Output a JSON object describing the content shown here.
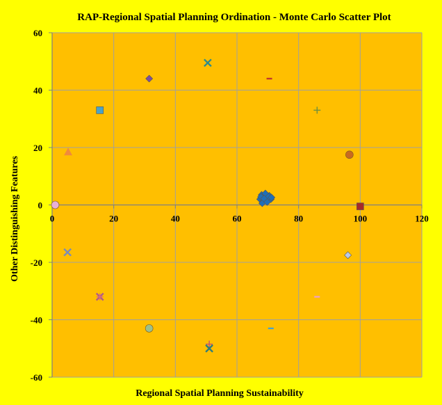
{
  "chart_data": {
    "type": "scatter",
    "title": "RAP-Regional Spatial Planning Ordination  - Monte Carlo Scatter Plot",
    "xlabel": "Regional Spatial Planning Sustainability",
    "ylabel": "Other Distinguishing Features",
    "xlim": [
      0,
      120
    ],
    "ylim": [
      -60,
      60
    ],
    "xticks": [
      0,
      20,
      40,
      60,
      80,
      100,
      120
    ],
    "yticks": [
      -60,
      -40,
      -20,
      0,
      20,
      40,
      60
    ],
    "grid": true,
    "legend": "none",
    "colors": {
      "background": "#ffff00",
      "plot_area": "#ffbf00",
      "gridline": "#a0a0a0",
      "cluster": "#1f6fb8"
    },
    "cluster": {
      "marker": "diamond",
      "color": "#1f6fb8",
      "points": [
        [
          67.5,
          2.0
        ],
        [
          68.0,
          3.5
        ],
        [
          68.5,
          1.2
        ],
        [
          69.0,
          3.0
        ],
        [
          69.5,
          2.4
        ],
        [
          70.0,
          1.8
        ],
        [
          70.5,
          3.2
        ],
        [
          71.0,
          2.0
        ],
        [
          68.2,
          0.6
        ],
        [
          69.2,
          4.0
        ],
        [
          70.2,
          2.8
        ],
        [
          67.8,
          2.8
        ],
        [
          71.2,
          2.6
        ],
        [
          68.8,
          2.2
        ],
        [
          69.8,
          1.0
        ]
      ]
    },
    "points": [
      {
        "marker": "diamond",
        "color": "#7b4fa0",
        "x": 31.5,
        "y": 44
      },
      {
        "marker": "x",
        "color": "#2e8b8b",
        "x": 50.5,
        "y": 49.5
      },
      {
        "marker": "dash",
        "color": "#c0392b",
        "x": 70.5,
        "y": 44
      },
      {
        "marker": "square",
        "color": "#4aa3c9",
        "x": 15.5,
        "y": 33
      },
      {
        "marker": "plus",
        "color": "#6f8f3f",
        "x": 86,
        "y": 33
      },
      {
        "marker": "triangle",
        "color": "#f08a3c",
        "x": 5.2,
        "y": 18.5
      },
      {
        "marker": "circle",
        "color": "#c86a20",
        "x": 96.5,
        "y": 17.5
      },
      {
        "marker": "circle",
        "color": "#e8b0d8",
        "x": 1,
        "y": 0
      },
      {
        "marker": "square",
        "color": "#a52a2a",
        "x": 100,
        "y": -0.5
      },
      {
        "marker": "x",
        "color": "#7a8bb8",
        "x": 5,
        "y": -16.5
      },
      {
        "marker": "diamond",
        "color": "#b8c8e8",
        "x": 96,
        "y": -17.5
      },
      {
        "marker": "x",
        "color": "#b05a8a",
        "x": 15.5,
        "y": -32
      },
      {
        "marker": "plus",
        "color": "#e07070",
        "x": 15.5,
        "y": -32
      },
      {
        "marker": "dash",
        "color": "#f0a0c0",
        "x": 86,
        "y": -32
      },
      {
        "marker": "circle",
        "color": "#9cc08a",
        "x": 31.5,
        "y": -43
      },
      {
        "marker": "dash",
        "color": "#4aa3c9",
        "x": 71,
        "y": -43
      },
      {
        "marker": "plus",
        "color": "#c0507a",
        "x": 51,
        "y": -48.5
      },
      {
        "marker": "x",
        "color": "#2e7d7d",
        "x": 51,
        "y": -50
      }
    ]
  }
}
